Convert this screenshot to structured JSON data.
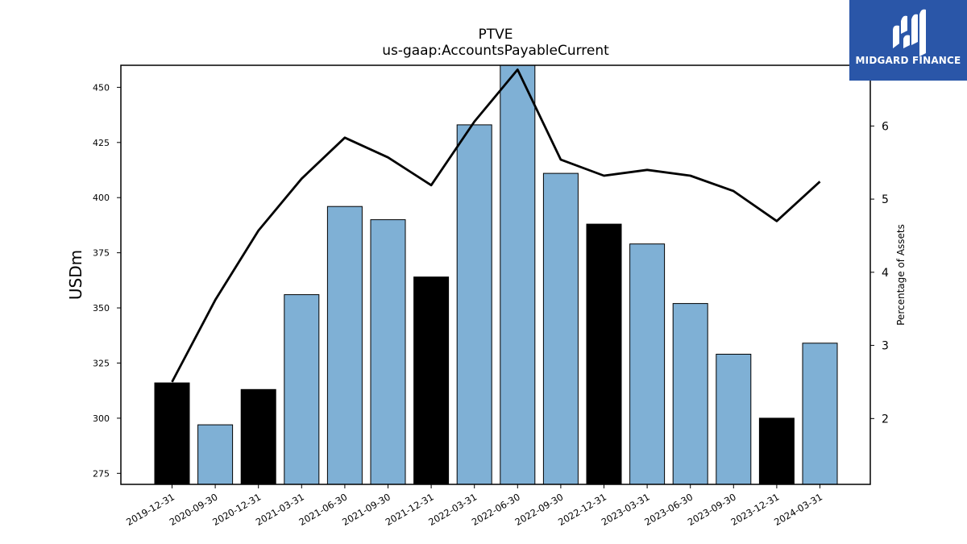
{
  "logo": {
    "text": "MIDGARD FINANCE",
    "background": "#2a56a8"
  },
  "chart_data": {
    "type": "bar",
    "title": "PTVE",
    "subtitle": "us-gaap:AccountsPayableCurrent",
    "ylabel": "USDm",
    "y2label": "Percentage of Assets",
    "categories": [
      "2019-12-31",
      "2020-09-30",
      "2020-12-31",
      "2021-03-31",
      "2021-06-30",
      "2021-09-30",
      "2021-12-31",
      "2022-03-31",
      "2022-06-30",
      "2022-09-30",
      "2022-12-31",
      "2023-03-31",
      "2023-06-30",
      "2023-09-30",
      "2023-12-31",
      "2024-03-31"
    ],
    "series": [
      {
        "values": [
          316,
          297,
          313,
          356,
          396,
          390,
          364,
          433,
          461,
          411,
          388,
          379,
          352,
          329,
          300,
          334
        ],
        "colors": [
          "#000000",
          "#7fb0d5",
          "#000000",
          "#7fb0d5",
          "#7fb0d5",
          "#7fb0d5",
          "#000000",
          "#7fb0d5",
          "#7fb0d5",
          "#7fb0d5",
          "#000000",
          "#7fb0d5",
          "#7fb0d5",
          "#7fb0d5",
          "#000000",
          "#7fb0d5"
        ]
      },
      {
        "type": "line",
        "axis": "right",
        "color": "#000000",
        "values": [
          2.5,
          3.62,
          4.57,
          5.28,
          5.84,
          5.57,
          5.19,
          6.06,
          6.77,
          5.54,
          5.32,
          5.4,
          5.32,
          5.11,
          4.7,
          5.24
        ]
      }
    ],
    "ylim": [
      270,
      460
    ],
    "yticks": [
      275,
      300,
      325,
      350,
      375,
      400,
      425,
      450
    ],
    "y2lim": [
      1.1,
      6.83
    ],
    "y2ticks": [
      2,
      3,
      4,
      5,
      6
    ],
    "grid": false
  }
}
